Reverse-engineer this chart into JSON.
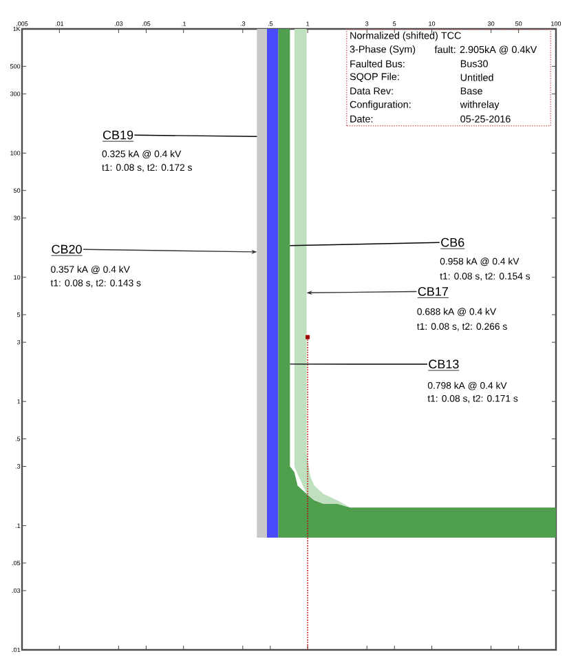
{
  "chart_data": {
    "type": "area",
    "log": "xy",
    "xlim": [
      0.005,
      100
    ],
    "ylim": [
      0.01,
      1000
    ],
    "xticks": [
      {
        "value": 0.005,
        "label": ".005"
      },
      {
        "value": 0.01,
        "label": ".01"
      },
      {
        "value": 0.03,
        "label": ".03"
      },
      {
        "value": 0.05,
        "label": ".05"
      },
      {
        "value": 0.1,
        "label": ".1"
      },
      {
        "value": 0.3,
        "label": ".3"
      },
      {
        "value": 0.5,
        "label": ".5"
      },
      1,
      3,
      5,
      10,
      30,
      50,
      100
    ],
    "yticks": [
      {
        "value": 0.01,
        "label": ".01"
      },
      {
        "value": 0.03,
        "label": ".03"
      },
      {
        "value": 0.05,
        "label": ".05"
      },
      {
        "value": 0.1,
        "label": ".1"
      },
      {
        "value": 0.3,
        "label": ".3"
      },
      {
        "value": 0.5,
        "label": ".5"
      },
      1,
      3,
      5,
      10,
      30,
      50,
      100,
      300,
      500,
      {
        "value": 1000,
        "label": "1K"
      }
    ],
    "series": [
      {
        "color": "#c8c8c8",
        "x": [
          0.39,
          0.47
        ],
        "values": [
          null,
          null
        ],
        "lower": [
          0.08,
          0.08
        ],
        "upper": [
          1000,
          1000
        ]
      },
      {
        "color": "#4a4aff",
        "x": [
          0.47,
          0.58
        ],
        "values": [
          null,
          null
        ],
        "lower": [
          0.08,
          0.08
        ],
        "upper": [
          1000,
          1000
        ]
      },
      {
        "color": "#4f9f4f",
        "x": [
          0.58,
          0.72,
          0.72,
          0.78,
          0.83,
          0.98,
          1.13,
          1.34,
          1.73,
          2.2,
          100
        ],
        "values": [
          null,
          null,
          null,
          null,
          null,
          null,
          null,
          null,
          null,
          null,
          null
        ],
        "lower": [
          0.08,
          0.08,
          0.08,
          0.08,
          0.08,
          0.08,
          0.08,
          0.08,
          0.08,
          0.08,
          0.08
        ],
        "upper": [
          1000,
          1000,
          0.3,
          0.27,
          0.21,
          0.18,
          0.16,
          0.15,
          0.15,
          0.14,
          0.14
        ]
      },
      {
        "color": "#bfe0bf",
        "x": [
          0.78,
          0.78,
          0.98,
          0.98,
          1.05,
          1.13,
          1.34,
          1.73,
          2.2
        ],
        "values": [
          null,
          null,
          null,
          null,
          null,
          null,
          null,
          null,
          null
        ],
        "lower": [
          1000,
          0.3,
          0.18,
          0.18,
          0.17,
          0.16,
          0.15,
          0.15,
          0.14
        ],
        "upper": [
          1000,
          1000,
          1000,
          0.38,
          0.25,
          0.21,
          0.18,
          0.16,
          0.14
        ]
      },
      {
        "type": "line",
        "color": "#c00000",
        "line_style": "dotted",
        "x": [
          1,
          1
        ],
        "values": [
          3.3,
          0.01
        ]
      },
      {
        "type": "scatter",
        "color": "#a00000",
        "marker": "square",
        "x": [
          1
        ],
        "values": [
          3.3
        ]
      }
    ],
    "annotations": [
      {
        "text": "CB19",
        "x": 0.39,
        "y": 136
      },
      "0.325 kA @ 0.4 kV",
      "t1: 0.08 s, t2: 0.172 s",
      {
        "text": "CB20",
        "x": 0.39,
        "y": 16
      },
      "0.357 kA @ 0.4 kV",
      "t1: 0.08 s, t2: 0.143 s",
      {
        "text": "CB6",
        "x": 0.72,
        "y": 18
      },
      "0.958 kA @ 0.4 kV",
      "t1: 0.08 s, t2: 0.154 s",
      {
        "text": "CB17",
        "x": 0.98,
        "y": 7.5
      },
      "0.688 kA @ 0.4 kV",
      "t1: 0.08 s, t2: 0.266 s",
      {
        "text": "CB13",
        "x": 0.72,
        "y": 2
      },
      "0.798 kA @ 0.4 kV",
      "t1: 0.08 s, t2: 0.171 s",
      "Normalized (shifted) TCC",
      "3-Phase  (Sym)",
      "fault: 2.905kA @ 0.4kV",
      "Faulted  Bus:",
      "Bus30",
      "SQOP  File:",
      "Untitled",
      "Data  Rev:",
      "Base",
      "Configuration:",
      "withrelay",
      "Date:",
      "05-25-2016"
    ]
  }
}
